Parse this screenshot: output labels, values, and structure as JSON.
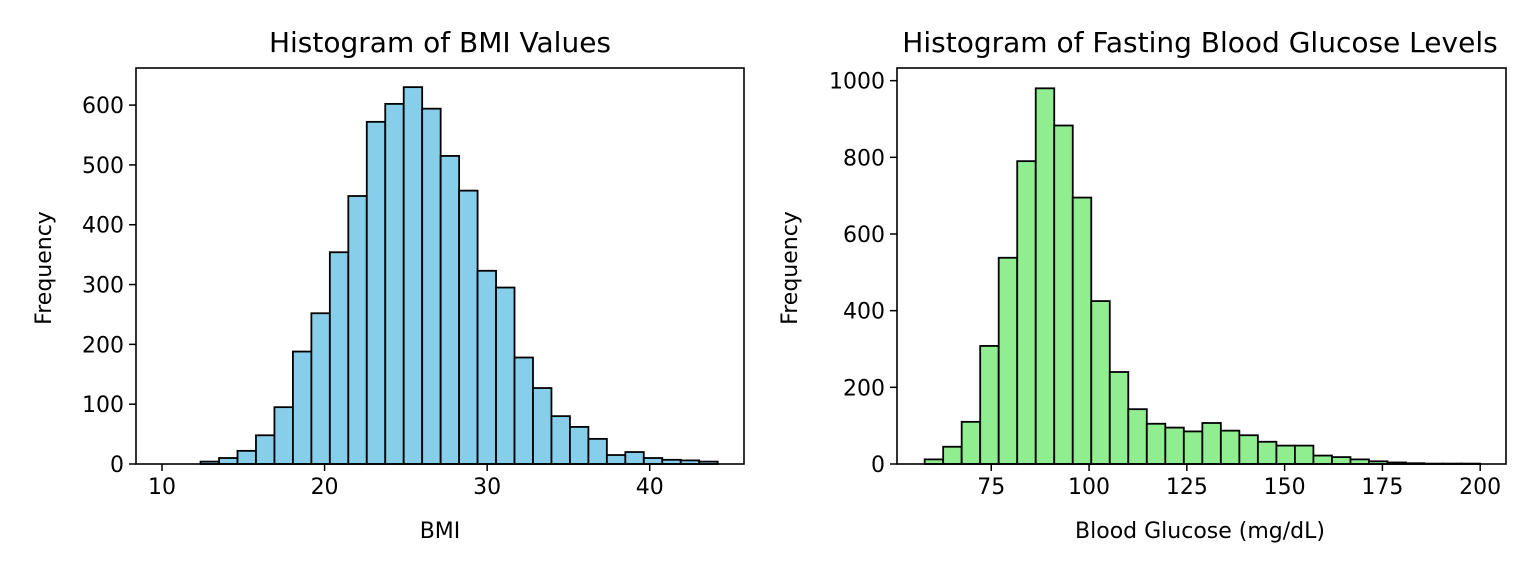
{
  "chart_data": [
    {
      "type": "bar",
      "title": "Histogram of BMI Values",
      "xlabel": "BMI",
      "ylabel": "Frequency",
      "xlim": [
        8.4,
        45.8
      ],
      "ylim": [
        0,
        662
      ],
      "xticks": [
        10,
        20,
        30,
        40
      ],
      "yticks": [
        0,
        100,
        200,
        300,
        400,
        500,
        600
      ],
      "bar_color": "#87ceeb",
      "edge_color": "#000000",
      "grid": false,
      "bin_start": 10.1,
      "bin_width": 1.136,
      "values": [
        0,
        0,
        4,
        10,
        22,
        48,
        95,
        188,
        252,
        354,
        448,
        572,
        602,
        630,
        594,
        515,
        457,
        323,
        295,
        178,
        127,
        80,
        62,
        42,
        15,
        20,
        10,
        7,
        6,
        4
      ]
    },
    {
      "type": "bar",
      "title": "Histogram of Fasting Blood Glucose Levels",
      "xlabel": "Blood Glucose (mg/dL)",
      "ylabel": "Frequency",
      "xlim": [
        50.9,
        206.6
      ],
      "ylim": [
        0,
        1033
      ],
      "xticks": [
        75,
        100,
        125,
        150,
        175,
        200
      ],
      "yticks": [
        0,
        200,
        400,
        600,
        800,
        1000
      ],
      "bar_color": "#90ee90",
      "edge_color": "#000000",
      "grid": false,
      "bin_start": 57.97,
      "bin_width": 4.733,
      "values": [
        12,
        45,
        110,
        308,
        538,
        790,
        980,
        883,
        695,
        425,
        240,
        143,
        105,
        95,
        85,
        107,
        87,
        75,
        58,
        48,
        48,
        22,
        18,
        12,
        7,
        4,
        2,
        1,
        1,
        1
      ]
    }
  ]
}
